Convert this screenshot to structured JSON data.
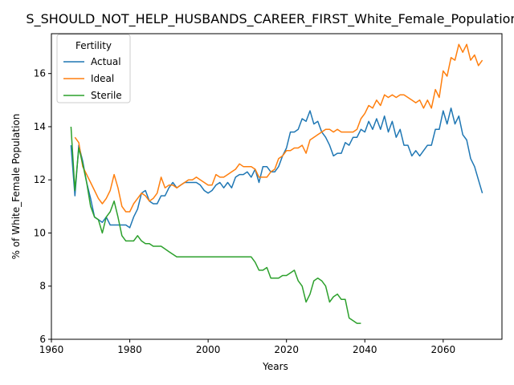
{
  "chart_data": {
    "type": "line",
    "title": "S_SHOULD_NOT_HELP_HUSBANDS_CAREER_FIRST_White_Female_Population_",
    "xlabel": "Years",
    "ylabel": "% of White_Female Population",
    "xlim": [
      1960,
      2075
    ],
    "ylim": [
      6,
      17.5
    ],
    "xticks": [
      1960,
      1980,
      2000,
      2020,
      2040,
      2060
    ],
    "yticks": [
      6,
      8,
      10,
      12,
      14,
      16
    ],
    "grid": false,
    "legend": {
      "title": "Fertility",
      "placement": "top-left"
    },
    "series": [
      {
        "name": "Actual",
        "color": "#1f77b4",
        "x": [
          1965,
          1966,
          1967,
          1968,
          1969,
          1970,
          1971,
          1972,
          1973,
          1974,
          1975,
          1976,
          1977,
          1978,
          1979,
          1980,
          1981,
          1982,
          1983,
          1984,
          1985,
          1986,
          1987,
          1988,
          1989,
          1990,
          1991,
          1992,
          1993,
          1994,
          1995,
          1996,
          1997,
          1998,
          1999,
          2000,
          2001,
          2002,
          2003,
          2004,
          2005,
          2006,
          2007,
          2008,
          2009,
          2010,
          2011,
          2012,
          2013,
          2014,
          2015,
          2016,
          2017,
          2018,
          2019,
          2020,
          2021,
          2022,
          2023,
          2024,
          2025,
          2026,
          2027,
          2028,
          2029,
          2030,
          2031,
          2032,
          2033,
          2034,
          2035,
          2036,
          2037,
          2038,
          2039,
          2040,
          2041,
          2042,
          2043,
          2044,
          2045,
          2046,
          2047,
          2048,
          2049,
          2050,
          2051,
          2052,
          2053,
          2054,
          2055,
          2056,
          2057,
          2058,
          2059,
          2060,
          2061,
          2062,
          2063,
          2064,
          2065,
          2066,
          2067,
          2068,
          2069,
          2070
        ],
        "values": [
          13.3,
          11.4,
          13.3,
          12.7,
          11.9,
          11.3,
          10.6,
          10.5,
          10.4,
          10.6,
          10.3,
          10.3,
          10.3,
          10.3,
          10.3,
          10.2,
          10.6,
          10.9,
          11.5,
          11.6,
          11.2,
          11.1,
          11.1,
          11.4,
          11.4,
          11.7,
          11.9,
          11.7,
          11.8,
          11.9,
          11.9,
          11.9,
          11.9,
          11.8,
          11.6,
          11.5,
          11.6,
          11.8,
          11.9,
          11.7,
          11.9,
          11.7,
          12.1,
          12.2,
          12.2,
          12.3,
          12.1,
          12.4,
          11.9,
          12.5,
          12.5,
          12.3,
          12.3,
          12.5,
          12.9,
          13.2,
          13.8,
          13.8,
          13.9,
          14.3,
          14.2,
          14.6,
          14.1,
          14.2,
          13.8,
          13.6,
          13.3,
          12.9,
          13.0,
          13.0,
          13.4,
          13.3,
          13.6,
          13.6,
          13.9,
          13.8,
          14.2,
          13.9,
          14.3,
          13.9,
          14.4,
          13.8,
          14.2,
          13.6,
          13.9,
          13.3,
          13.3,
          12.9,
          13.1,
          12.9,
          13.1,
          13.3,
          13.3,
          13.9,
          13.9,
          14.6,
          14.1,
          14.7,
          14.1,
          14.4,
          13.7,
          13.5,
          12.8,
          12.5,
          12.0,
          11.5
        ]
      },
      {
        "name": "Ideal",
        "color": "#ff7f0e",
        "x": [
          1966,
          1967,
          1968,
          1969,
          1970,
          1971,
          1972,
          1973,
          1974,
          1975,
          1976,
          1977,
          1978,
          1979,
          1980,
          1981,
          1982,
          1983,
          1984,
          1985,
          1986,
          1987,
          1988,
          1989,
          1990,
          1991,
          1992,
          1993,
          1994,
          1995,
          1996,
          1997,
          1998,
          1999,
          2000,
          2001,
          2002,
          2003,
          2004,
          2005,
          2006,
          2007,
          2008,
          2009,
          2010,
          2011,
          2012,
          2013,
          2014,
          2015,
          2016,
          2017,
          2018,
          2019,
          2020,
          2021,
          2022,
          2023,
          2024,
          2025,
          2026,
          2027,
          2028,
          2029,
          2030,
          2031,
          2032,
          2033,
          2034,
          2035,
          2036,
          2037,
          2038,
          2039,
          2040,
          2041,
          2042,
          2043,
          2044,
          2045,
          2046,
          2047,
          2048,
          2049,
          2050,
          2051,
          2052,
          2053,
          2054,
          2055,
          2056,
          2057,
          2058,
          2059,
          2060,
          2061,
          2062,
          2063,
          2064,
          2065,
          2066,
          2067,
          2068,
          2069,
          2070
        ],
        "values": [
          13.6,
          13.4,
          12.5,
          12.2,
          11.9,
          11.6,
          11.3,
          11.1,
          11.3,
          11.6,
          12.2,
          11.7,
          11.0,
          10.8,
          10.8,
          11.1,
          11.3,
          11.5,
          11.4,
          11.2,
          11.3,
          11.5,
          12.1,
          11.7,
          11.8,
          11.8,
          11.7,
          11.8,
          11.9,
          12.0,
          12.0,
          12.1,
          12.0,
          11.9,
          11.8,
          11.8,
          12.2,
          12.1,
          12.1,
          12.2,
          12.3,
          12.4,
          12.6,
          12.5,
          12.5,
          12.5,
          12.4,
          12.1,
          12.1,
          12.1,
          12.3,
          12.4,
          12.8,
          12.9,
          13.1,
          13.1,
          13.2,
          13.2,
          13.3,
          13.0,
          13.5,
          13.6,
          13.7,
          13.8,
          13.9,
          13.9,
          13.8,
          13.9,
          13.8,
          13.8,
          13.8,
          13.8,
          13.9,
          14.3,
          14.5,
          14.8,
          14.7,
          15.0,
          14.8,
          15.2,
          15.1,
          15.2,
          15.1,
          15.2,
          15.2,
          15.1,
          15.0,
          14.9,
          15.0,
          14.7,
          15.0,
          14.7,
          15.4,
          15.1,
          16.1,
          15.9,
          16.6,
          16.5,
          17.1,
          16.8,
          17.1,
          16.5,
          16.7,
          16.3,
          16.5
        ]
      },
      {
        "name": "Sterile",
        "color": "#2ca02c",
        "x": [
          1965,
          1966,
          1967,
          1968,
          1969,
          1970,
          1971,
          1972,
          1973,
          1974,
          1975,
          1976,
          1977,
          1978,
          1979,
          1980,
          1981,
          1982,
          1983,
          1984,
          1985,
          1986,
          1987,
          1988,
          1989,
          1990,
          1991,
          1992,
          1993,
          1994,
          1995,
          1996,
          1997,
          1998,
          1999,
          2000,
          2001,
          2002,
          2003,
          2004,
          2005,
          2006,
          2007,
          2008,
          2009,
          2010,
          2011,
          2012,
          2013,
          2014,
          2015,
          2016,
          2017,
          2018,
          2019,
          2020,
          2021,
          2022,
          2023,
          2024,
          2025,
          2026,
          2027,
          2028,
          2029,
          2030,
          2031,
          2032,
          2033,
          2034,
          2035,
          2036,
          2037,
          2038,
          2039
        ],
        "values": [
          14.0,
          11.6,
          13.2,
          12.6,
          11.9,
          11.0,
          10.6,
          10.5,
          10.0,
          10.6,
          10.8,
          11.2,
          10.6,
          9.9,
          9.7,
          9.7,
          9.7,
          9.9,
          9.7,
          9.6,
          9.6,
          9.5,
          9.5,
          9.5,
          9.4,
          9.3,
          9.2,
          9.1,
          9.1,
          9.1,
          9.1,
          9.1,
          9.1,
          9.1,
          9.1,
          9.1,
          9.1,
          9.1,
          9.1,
          9.1,
          9.1,
          9.1,
          9.1,
          9.1,
          9.1,
          9.1,
          9.1,
          8.9,
          8.6,
          8.6,
          8.7,
          8.3,
          8.3,
          8.3,
          8.4,
          8.4,
          8.5,
          8.6,
          8.2,
          8.0,
          7.4,
          7.7,
          8.2,
          8.3,
          8.2,
          8.0,
          7.4,
          7.6,
          7.7,
          7.5,
          7.5,
          6.8,
          6.7,
          6.6,
          6.6
        ]
      }
    ]
  }
}
